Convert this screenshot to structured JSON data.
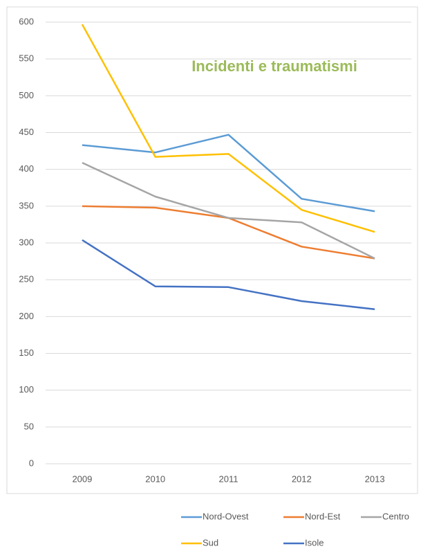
{
  "chart_data": {
    "type": "line",
    "title": "Incidenti e traumatismi",
    "categories": [
      "2009",
      "2010",
      "2011",
      "2012",
      "2013"
    ],
    "series": [
      {
        "name": "Nord-Ovest",
        "color": "#5b9bd5",
        "values": [
          433,
          423,
          447,
          360,
          343
        ]
      },
      {
        "name": "Nord-Est",
        "color": "#ed7d31",
        "values": [
          350,
          348,
          334,
          295,
          279
        ]
      },
      {
        "name": "Centro",
        "color": "#a5a5a5",
        "values": [
          409,
          363,
          334,
          328,
          279
        ]
      },
      {
        "name": "Sud",
        "color": "#ffc000",
        "values": [
          597,
          417,
          421,
          345,
          315
        ]
      },
      {
        "name": "Isole",
        "color": "#4472c4",
        "values": [
          304,
          241,
          240,
          221,
          210
        ]
      }
    ],
    "ylim": [
      0,
      600
    ],
    "yticks": [
      0,
      50,
      100,
      150,
      200,
      250,
      300,
      350,
      400,
      450,
      500,
      550,
      600
    ],
    "grid": true,
    "legend": "bottom",
    "title_color": "#9bbb59"
  }
}
